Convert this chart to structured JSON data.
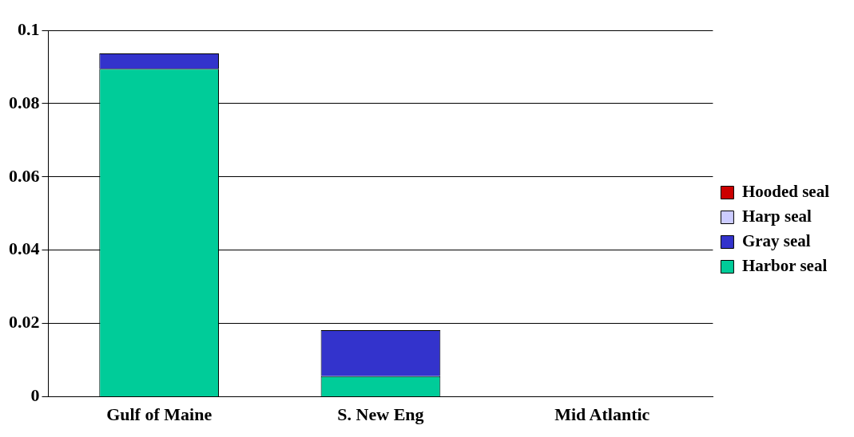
{
  "chart_data": {
    "type": "bar",
    "stacked": true,
    "categories": [
      "Gulf of Maine",
      "S. New Eng",
      "Mid Atlantic"
    ],
    "series": [
      {
        "name": "Harbor seal",
        "color": "#00cc99",
        "values": [
          0.0895,
          0.0056,
          0
        ]
      },
      {
        "name": "Gray seal",
        "color": "#3333cc",
        "values": [
          0.0042,
          0.0126,
          0
        ]
      },
      {
        "name": "Harp seal",
        "color": "#ccccff",
        "values": [
          0,
          0,
          0
        ]
      },
      {
        "name": "Hooded seal",
        "color": "#cc0000",
        "values": [
          0,
          0,
          0
        ]
      }
    ],
    "ylim": [
      0,
      0.1
    ],
    "yticks": [
      0,
      0.02,
      0.04,
      0.06,
      0.08,
      0.1
    ],
    "grid": "y",
    "legend": "right"
  }
}
